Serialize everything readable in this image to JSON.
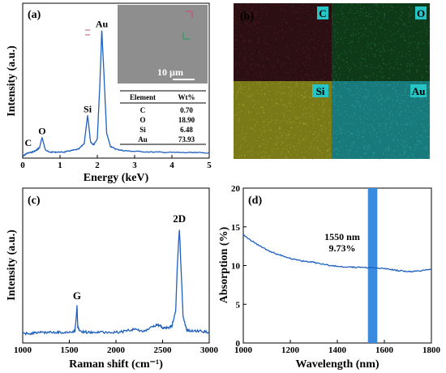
{
  "chart_data": [
    {
      "panel": "(a)",
      "type": "line",
      "xlabel": "Energy (keV)",
      "ylabel": "Intensity (a.u.)",
      "xlim": [
        0,
        5
      ],
      "xticks": [
        "0",
        "1",
        "2",
        "3",
        "4",
        "5"
      ],
      "line_color": "#1f5fbf",
      "peaks": [
        {
          "label": "C",
          "x": 0.28,
          "y": 0.05
        },
        {
          "label": "O",
          "x": 0.52,
          "y": 0.13
        },
        {
          "label": "Si",
          "x": 1.74,
          "y": 0.28
        },
        {
          "label": "Au",
          "x": 2.12,
          "y": 0.86
        }
      ],
      "curve": [
        [
          0,
          0
        ],
        [
          0.1,
          0.02
        ],
        [
          0.25,
          0.03
        ],
        [
          0.35,
          0.04
        ],
        [
          0.45,
          0.06
        ],
        [
          0.52,
          0.13
        ],
        [
          0.6,
          0.05
        ],
        [
          0.7,
          0.03
        ],
        [
          0.9,
          0.03
        ],
        [
          1.1,
          0.03
        ],
        [
          1.3,
          0.04
        ],
        [
          1.5,
          0.05
        ],
        [
          1.65,
          0.09
        ],
        [
          1.74,
          0.28
        ],
        [
          1.82,
          0.1
        ],
        [
          1.9,
          0.08
        ],
        [
          2.0,
          0.12
        ],
        [
          2.07,
          0.5
        ],
        [
          2.12,
          0.86
        ],
        [
          2.18,
          0.55
        ],
        [
          2.25,
          0.16
        ],
        [
          2.35,
          0.07
        ],
        [
          2.5,
          0.05
        ],
        [
          2.7,
          0.04
        ],
        [
          3.0,
          0.035
        ],
        [
          3.5,
          0.03
        ],
        [
          4.0,
          0.028
        ],
        [
          4.5,
          0.026
        ],
        [
          5.0,
          0.025
        ]
      ],
      "inset": {
        "scale_label": "10 µm",
        "table": {
          "headers": [
            "Element",
            "Wt%"
          ],
          "rows": [
            [
              "C",
              "0.70"
            ],
            [
              "O",
              "18.90"
            ],
            [
              "Si",
              "6.48"
            ],
            [
              "Au",
              "73.93"
            ]
          ]
        }
      }
    },
    {
      "panel": "(b)",
      "type": "heatmap",
      "maps": [
        {
          "label": "C",
          "color": "#2b0f12",
          "dot": "#6a2a30"
        },
        {
          "label": "O",
          "color": "#0f3a1a",
          "dot": "#2f8a3c"
        },
        {
          "label": "Si",
          "color": "#7a7a18",
          "dot": "#b8b83a"
        },
        {
          "label": "Au",
          "color": "#187a7a",
          "dot": "#3fb8b8"
        }
      ],
      "label_bg": "#26c4c4"
    },
    {
      "panel": "(c)",
      "type": "line",
      "xlabel": "Raman shift (cm⁻¹)",
      "ylabel": "Intensity (a.u.)",
      "xlim": [
        1000,
        3000
      ],
      "xticks": [
        "1000",
        "1500",
        "2000",
        "2500",
        "3000"
      ],
      "line_color": "#1f5fbf",
      "peaks": [
        {
          "label": "G",
          "x": 1582,
          "y": 0.3
        },
        {
          "label": "2D",
          "x": 2680,
          "y": 1.0
        }
      ],
      "curve": [
        [
          1000,
          0.05
        ],
        [
          1100,
          0.05
        ],
        [
          1200,
          0.06
        ],
        [
          1300,
          0.06
        ],
        [
          1400,
          0.06
        ],
        [
          1500,
          0.06
        ],
        [
          1560,
          0.07
        ],
        [
          1575,
          0.2
        ],
        [
          1582,
          0.3
        ],
        [
          1590,
          0.12
        ],
        [
          1610,
          0.07
        ],
        [
          1700,
          0.06
        ],
        [
          1800,
          0.06
        ],
        [
          1900,
          0.06
        ],
        [
          2000,
          0.06
        ],
        [
          2100,
          0.07
        ],
        [
          2200,
          0.09
        ],
        [
          2300,
          0.07
        ],
        [
          2400,
          0.11
        ],
        [
          2450,
          0.13
        ],
        [
          2500,
          0.1
        ],
        [
          2550,
          0.1
        ],
        [
          2600,
          0.12
        ],
        [
          2640,
          0.25
        ],
        [
          2660,
          0.7
        ],
        [
          2680,
          1.0
        ],
        [
          2700,
          0.6
        ],
        [
          2720,
          0.2
        ],
        [
          2760,
          0.08
        ],
        [
          2800,
          0.07
        ],
        [
          2900,
          0.07
        ],
        [
          3000,
          0.06
        ]
      ]
    },
    {
      "panel": "(d)",
      "type": "line",
      "xlabel": "Wavelength (nm)",
      "ylabel": "Absorption (%)",
      "xlim": [
        1000,
        1800
      ],
      "ylim": [
        0,
        20
      ],
      "xticks": [
        "1000",
        "1200",
        "1400",
        "1600",
        "1800"
      ],
      "yticks": [
        "0",
        "5",
        "10",
        "15",
        "20"
      ],
      "line_color": "#1f5fbf",
      "band_color": "#3a8be0",
      "band": [
        1530,
        1570
      ],
      "annotation": [
        "1550 nm",
        "9.73%"
      ],
      "curve": [
        [
          1000,
          14.0
        ],
        [
          1050,
          12.9
        ],
        [
          1100,
          12.0
        ],
        [
          1150,
          11.4
        ],
        [
          1200,
          10.9
        ],
        [
          1250,
          10.6
        ],
        [
          1300,
          10.4
        ],
        [
          1350,
          10.1
        ],
        [
          1400,
          9.9
        ],
        [
          1450,
          9.8
        ],
        [
          1500,
          9.75
        ],
        [
          1550,
          9.73
        ],
        [
          1600,
          9.6
        ],
        [
          1650,
          9.4
        ],
        [
          1700,
          9.2
        ],
        [
          1750,
          9.3
        ],
        [
          1800,
          9.5
        ]
      ]
    }
  ]
}
